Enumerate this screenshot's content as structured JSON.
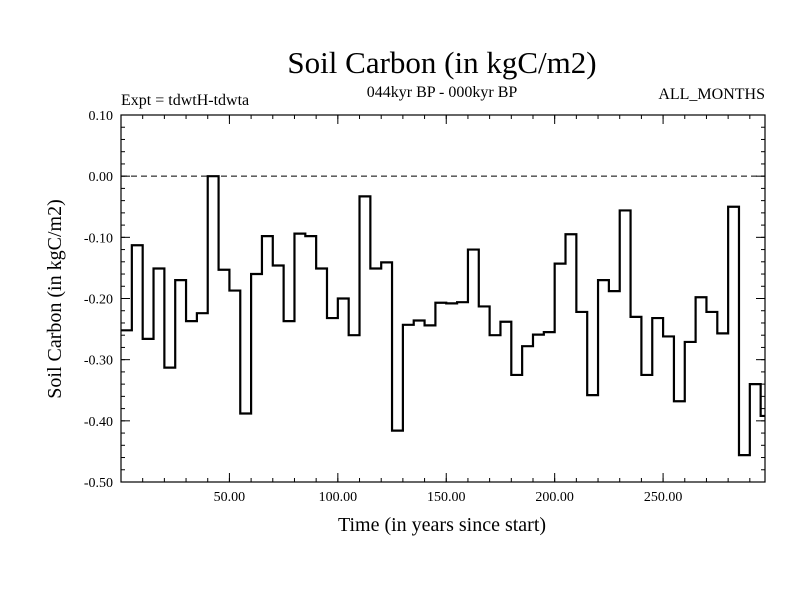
{
  "chart_data": {
    "type": "line",
    "title": "Soil Carbon (in kgC/m2)",
    "subtitle": "044kyr BP - 000kyr BP",
    "left_note": "Expt = tdwtH-tdwta",
    "right_note": "ALL_MONTHS",
    "xlabel": "Time (in years since start)",
    "ylabel": "Soil Carbon (in kgC/m2)",
    "xlim": [
      0,
      297
    ],
    "ylim": [
      -0.5,
      0.1
    ],
    "xticks": [
      50,
      100,
      150,
      200,
      250
    ],
    "xtick_labels": [
      "50.00",
      "100.00",
      "150.00",
      "200.00",
      "250.00"
    ],
    "yticks": [
      0.1,
      0.0,
      -0.1,
      -0.2,
      -0.3,
      -0.4,
      -0.5
    ],
    "ytick_labels": [
      "0.10",
      "0.00",
      "-0.10",
      "-0.20",
      "-0.30",
      "-0.40",
      "-0.50"
    ],
    "zero_line": 0.0,
    "step_width": 5,
    "series": [
      {
        "name": "Soil Carbon",
        "values": [
          -0.252,
          -0.113,
          -0.266,
          -0.151,
          -0.313,
          -0.17,
          -0.237,
          -0.224,
          0.0,
          -0.153,
          -0.187,
          -0.388,
          -0.16,
          -0.098,
          -0.146,
          -0.237,
          -0.094,
          -0.098,
          -0.151,
          -0.232,
          -0.2,
          -0.26,
          -0.033,
          -0.151,
          -0.141,
          -0.416,
          -0.243,
          -0.236,
          -0.244,
          -0.207,
          -0.208,
          -0.206,
          -0.12,
          -0.213,
          -0.26,
          -0.238,
          -0.325,
          -0.278,
          -0.259,
          -0.255,
          -0.143,
          -0.095,
          -0.222,
          -0.358,
          -0.17,
          -0.188,
          -0.056,
          -0.23,
          -0.325,
          -0.232,
          -0.262,
          -0.368,
          -0.271,
          -0.198,
          -0.222,
          -0.257,
          -0.05,
          -0.456,
          -0.34,
          -0.392
        ]
      }
    ]
  }
}
